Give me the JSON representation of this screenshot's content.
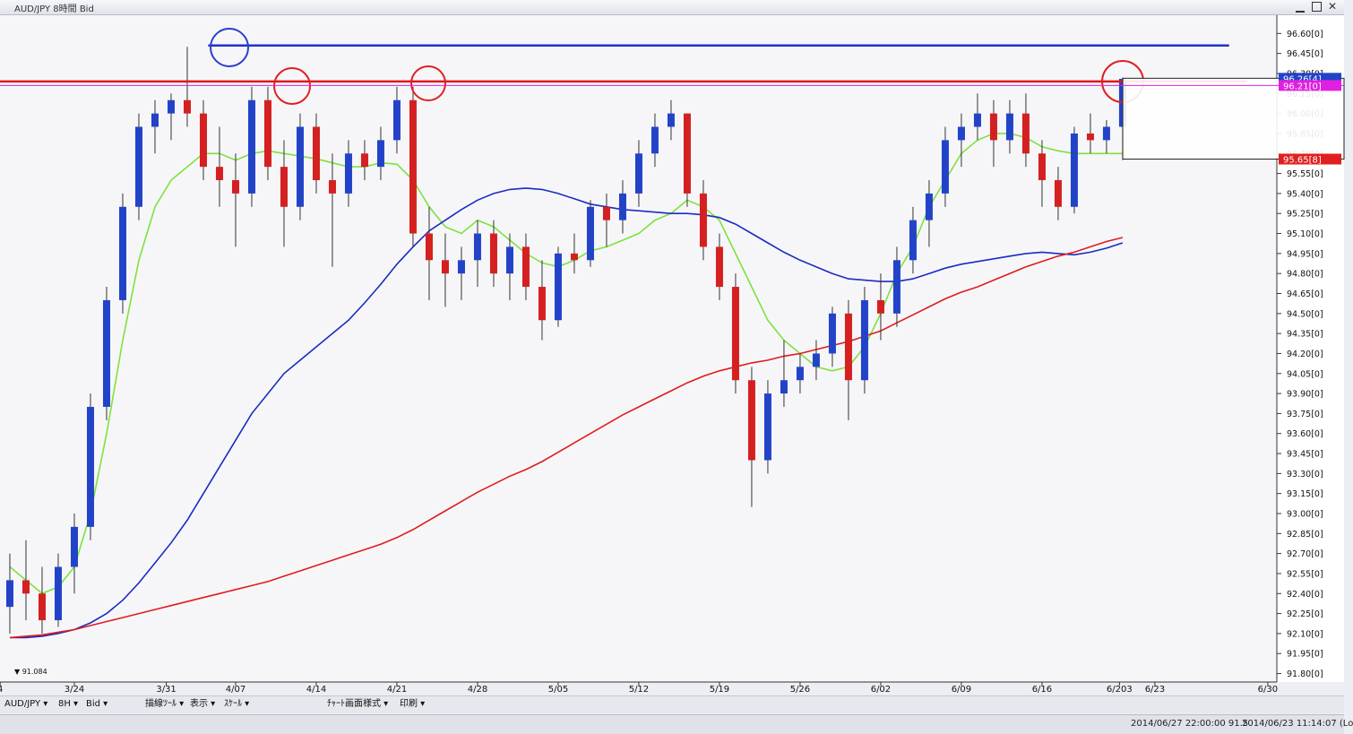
{
  "window": {
    "title": "AUD/JPY 8時間 Bid"
  },
  "toolbar": {
    "items": [
      "AUD/JPY ▾",
      "8H ▾",
      "Bid ▾",
      "描線ﾂｰﾙ ▾",
      "表示 ▾",
      "ｽｹｰﾙ ▾",
      "ﾁｬｰﾄ画面様式 ▾",
      "印刷 ▾"
    ]
  },
  "status": [
    "2014/06/27 22:00:00  91.5",
    "2014/06/23 11:14:07 (Lo"
  ],
  "chart_data": {
    "type": "candlestick",
    "xlim": [
      -4.61,
      74.56
    ],
    "ylim": [
      91.75,
      96.73
    ],
    "xticks": [
      {
        "value": -4.6,
        "label": "4"
      },
      {
        "value": 0,
        "label": "3/24"
      },
      {
        "value": 5.7,
        "label": "3/31"
      },
      {
        "value": 10,
        "label": "4/07"
      },
      {
        "value": 15,
        "label": "4/14"
      },
      {
        "value": 20,
        "label": "4/21"
      },
      {
        "value": 25,
        "label": "4/28"
      },
      {
        "value": 30,
        "label": "5/05"
      },
      {
        "value": 35,
        "label": "5/12"
      },
      {
        "value": 40,
        "label": "5/19"
      },
      {
        "value": 45,
        "label": "5/26"
      },
      {
        "value": 50,
        "label": "6/02"
      },
      {
        "value": 55,
        "label": "6/09"
      },
      {
        "value": 60,
        "label": "6/16"
      },
      {
        "value": 64.8,
        "label": "6/203"
      },
      {
        "value": 67,
        "label": "6/23"
      },
      {
        "value": 74,
        "label": "6/30"
      }
    ],
    "yticks": [
      {
        "value": 91.8,
        "label": "91.80[0]"
      },
      {
        "value": 91.95,
        "label": "91.95[0]"
      },
      {
        "value": 92.1,
        "label": "92.10[0]"
      },
      {
        "value": 92.25,
        "label": "92.25[0]"
      },
      {
        "value": 92.4,
        "label": "92.40[0]"
      },
      {
        "value": 92.55,
        "label": "92.55[0]"
      },
      {
        "value": 92.7,
        "label": "92.70[0]"
      },
      {
        "value": 92.85,
        "label": "92.85[0]"
      },
      {
        "value": 93.0,
        "label": "93.00[0]"
      },
      {
        "value": 93.15,
        "label": "93.15[0]"
      },
      {
        "value": 93.3,
        "label": "93.30[0]"
      },
      {
        "value": 93.45,
        "label": "93.45[0]"
      },
      {
        "value": 93.6,
        "label": "93.60[0]"
      },
      {
        "value": 93.75,
        "label": "93.75[0]"
      },
      {
        "value": 93.9,
        "label": "93.90[0]"
      },
      {
        "value": 94.05,
        "label": "94.05[0]"
      },
      {
        "value": 94.2,
        "label": "94.20[0]"
      },
      {
        "value": 94.35,
        "label": "94.35[0]"
      },
      {
        "value": 94.5,
        "label": "94.50[0]"
      },
      {
        "value": 94.65,
        "label": "94.65[0]"
      },
      {
        "value": 94.8,
        "label": "94.80[0]"
      },
      {
        "value": 94.95,
        "label": "94.95[0]"
      },
      {
        "value": 95.1,
        "label": "95.10[0]"
      },
      {
        "value": 95.25,
        "label": "95.25[0]"
      },
      {
        "value": 95.4,
        "label": "95.40[0]"
      },
      {
        "value": 95.55,
        "label": "95.55[0]"
      },
      {
        "value": 95.7,
        "label": "95.70[0]"
      },
      {
        "value": 95.85,
        "label": "95.85[0]"
      },
      {
        "value": 96.0,
        "label": "96.00[0]"
      },
      {
        "value": 96.15,
        "label": "96.15[0]"
      },
      {
        "value": 96.3,
        "label": "96.30[0]"
      },
      {
        "value": 96.45,
        "label": "96.45[0]"
      },
      {
        "value": 96.6,
        "label": "96.60[0]"
      }
    ],
    "x": [
      -4,
      -3,
      -2,
      -1,
      0,
      1,
      2,
      3,
      4,
      5,
      6,
      7,
      8,
      9,
      10,
      11,
      12,
      13,
      14,
      15,
      16,
      17,
      18,
      19,
      20,
      21,
      22,
      23,
      24,
      25,
      26,
      27,
      28,
      29,
      30,
      31,
      32,
      33,
      34,
      35,
      36,
      37,
      38,
      39,
      40,
      41,
      42,
      43,
      44,
      45,
      46,
      47,
      48,
      49,
      50,
      51,
      52,
      53,
      54,
      55,
      56,
      57,
      58,
      59,
      60,
      61,
      62,
      63,
      64,
      65
    ],
    "up_color": "#2243c8",
    "down_color": "#d42020",
    "open": [
      92.3,
      92.5,
      92.4,
      92.2,
      92.6,
      92.9,
      93.8,
      94.6,
      95.3,
      95.9,
      96.0,
      96.1,
      96.0,
      95.6,
      95.5,
      95.4,
      96.1,
      95.6,
      95.3,
      95.9,
      95.5,
      95.4,
      95.7,
      95.6,
      95.8,
      96.1,
      95.1,
      94.9,
      94.8,
      94.9,
      95.1,
      94.8,
      95.0,
      94.7,
      94.45,
      94.95,
      94.9,
      95.3,
      95.2,
      95.4,
      95.7,
      95.9,
      96.0,
      95.4,
      95.0,
      94.7,
      94.0,
      93.4,
      93.9,
      94.0,
      94.1,
      94.2,
      94.5,
      94.0,
      94.6,
      94.5,
      94.9,
      95.2,
      95.4,
      95.8,
      95.9,
      96.0,
      95.8,
      96.0,
      95.7,
      95.5,
      95.3,
      95.85,
      95.8,
      95.9
    ],
    "high": [
      92.7,
      92.8,
      92.6,
      92.7,
      93.0,
      93.9,
      94.7,
      95.4,
      96.0,
      96.1,
      96.15,
      96.5,
      96.1,
      95.9,
      95.7,
      96.2,
      96.2,
      95.8,
      96.0,
      96.0,
      95.7,
      95.8,
      95.8,
      95.9,
      96.2,
      96.2,
      95.3,
      95.1,
      95.0,
      95.2,
      95.2,
      95.1,
      95.1,
      94.9,
      95.0,
      95.1,
      95.35,
      95.4,
      95.5,
      95.8,
      96.0,
      96.1,
      96.0,
      95.5,
      95.1,
      94.8,
      94.1,
      94.0,
      94.3,
      94.2,
      94.3,
      94.55,
      94.6,
      94.7,
      94.8,
      95.0,
      95.3,
      95.5,
      95.9,
      96.0,
      96.15,
      96.1,
      96.1,
      96.15,
      95.8,
      95.6,
      95.9,
      96.0,
      95.95,
      96.27
    ],
    "low": [
      92.1,
      92.2,
      92.1,
      92.15,
      92.4,
      92.8,
      93.7,
      94.5,
      95.2,
      95.7,
      95.8,
      95.9,
      95.5,
      95.3,
      95.0,
      95.3,
      95.5,
      95.0,
      95.2,
      95.4,
      94.85,
      95.3,
      95.5,
      95.5,
      95.7,
      95.0,
      94.6,
      94.55,
      94.6,
      94.7,
      94.7,
      94.6,
      94.6,
      94.3,
      94.4,
      94.8,
      94.85,
      95.0,
      95.1,
      95.3,
      95.6,
      95.8,
      95.3,
      94.9,
      94.6,
      93.9,
      93.05,
      93.3,
      93.8,
      93.9,
      94.0,
      94.1,
      93.7,
      93.9,
      94.3,
      94.4,
      94.8,
      95.0,
      95.3,
      95.6,
      95.8,
      95.6,
      95.7,
      95.6,
      95.3,
      95.2,
      95.25,
      95.7,
      95.7,
      95.65
    ],
    "close": [
      92.5,
      92.4,
      92.2,
      92.6,
      92.9,
      93.8,
      94.6,
      95.3,
      95.9,
      96.0,
      96.1,
      96.0,
      95.6,
      95.5,
      95.4,
      96.1,
      95.6,
      95.3,
      95.9,
      95.5,
      95.4,
      95.7,
      95.6,
      95.8,
      96.1,
      95.1,
      94.9,
      94.8,
      94.9,
      95.1,
      94.8,
      95.0,
      94.7,
      94.45,
      94.95,
      94.9,
      95.3,
      95.2,
      95.4,
      95.7,
      95.9,
      96.0,
      95.4,
      95.0,
      94.7,
      94.0,
      93.4,
      93.9,
      94.0,
      94.1,
      94.2,
      94.5,
      94.0,
      94.6,
      94.5,
      94.9,
      95.2,
      95.4,
      95.8,
      95.9,
      96.0,
      95.8,
      96.0,
      95.7,
      95.5,
      95.3,
      95.85,
      95.8,
      95.9,
      96.26
    ],
    "lines": [
      {
        "color": "#7ee23c",
        "values": [
          92.6,
          92.5,
          92.4,
          92.45,
          92.6,
          93.0,
          93.6,
          94.3,
          94.9,
          95.3,
          95.5,
          95.6,
          95.7,
          95.7,
          95.65,
          95.7,
          95.72,
          95.7,
          95.68,
          95.66,
          95.63,
          95.6,
          95.6,
          95.63,
          95.62,
          95.5,
          95.3,
          95.15,
          95.1,
          95.2,
          95.15,
          95.05,
          94.95,
          94.88,
          94.85,
          94.9,
          94.97,
          95.0,
          95.05,
          95.1,
          95.2,
          95.25,
          95.35,
          95.3,
          95.2,
          94.95,
          94.7,
          94.45,
          94.3,
          94.2,
          94.1,
          94.07,
          94.1,
          94.25,
          94.5,
          94.8,
          95.0,
          95.3,
          95.5,
          95.7,
          95.8,
          95.85,
          95.85,
          95.82,
          95.75,
          95.72,
          95.7,
          95.7,
          95.7,
          95.7
        ]
      },
      {
        "color": "#1a2cc0",
        "values": [
          92.07,
          92.07,
          92.08,
          92.1,
          92.13,
          92.18,
          92.25,
          92.35,
          92.48,
          92.63,
          92.78,
          92.95,
          93.15,
          93.35,
          93.55,
          93.75,
          93.9,
          94.05,
          94.15,
          94.25,
          94.35,
          94.45,
          94.58,
          94.72,
          94.87,
          95.0,
          95.12,
          95.2,
          95.28,
          95.35,
          95.4,
          95.43,
          95.44,
          95.43,
          95.4,
          95.36,
          95.32,
          95.3,
          95.28,
          95.27,
          95.26,
          95.25,
          95.25,
          95.24,
          95.22,
          95.17,
          95.1,
          95.03,
          94.96,
          94.9,
          94.85,
          94.8,
          94.76,
          94.75,
          94.74,
          94.74,
          94.76,
          94.8,
          94.84,
          94.87,
          94.89,
          94.91,
          94.93,
          94.95,
          94.96,
          94.95,
          94.94,
          94.96,
          94.99,
          95.03
        ]
      },
      {
        "color": "#e01c1c",
        "values": [
          92.07,
          92.08,
          92.09,
          92.11,
          92.13,
          92.16,
          92.19,
          92.22,
          92.25,
          92.28,
          92.31,
          92.34,
          92.37,
          92.4,
          92.43,
          92.46,
          92.49,
          92.53,
          92.57,
          92.61,
          92.65,
          92.69,
          92.73,
          92.77,
          92.82,
          92.88,
          92.95,
          93.02,
          93.09,
          93.16,
          93.22,
          93.28,
          93.33,
          93.39,
          93.46,
          93.53,
          93.6,
          93.67,
          93.74,
          93.8,
          93.86,
          93.92,
          93.98,
          94.03,
          94.07,
          94.1,
          94.13,
          94.15,
          94.18,
          94.2,
          94.23,
          94.26,
          94.29,
          94.33,
          94.37,
          94.43,
          94.49,
          94.55,
          94.61,
          94.66,
          94.7,
          94.75,
          94.8,
          94.85,
          94.89,
          94.93,
          94.96,
          95.0,
          95.04,
          95.07
        ]
      }
    ],
    "hlines": [
      {
        "value": 96.51,
        "color": "#1e32c8",
        "x": [
          8.3,
          71.6
        ]
      },
      {
        "value": 96.24,
        "color": "#e01818",
        "x": [
          -4.61,
          72.7
        ]
      }
    ],
    "price_markers": [
      {
        "value": 96.264,
        "label": "96.26[4]",
        "color": "#2243c8"
      },
      {
        "value": 96.21,
        "label": "96.21[0]",
        "color": "#e020e0"
      },
      {
        "value": 95.658,
        "label": "95.65[8]",
        "color": "#e02020"
      }
    ],
    "low_label": "▼ 91.084"
  }
}
